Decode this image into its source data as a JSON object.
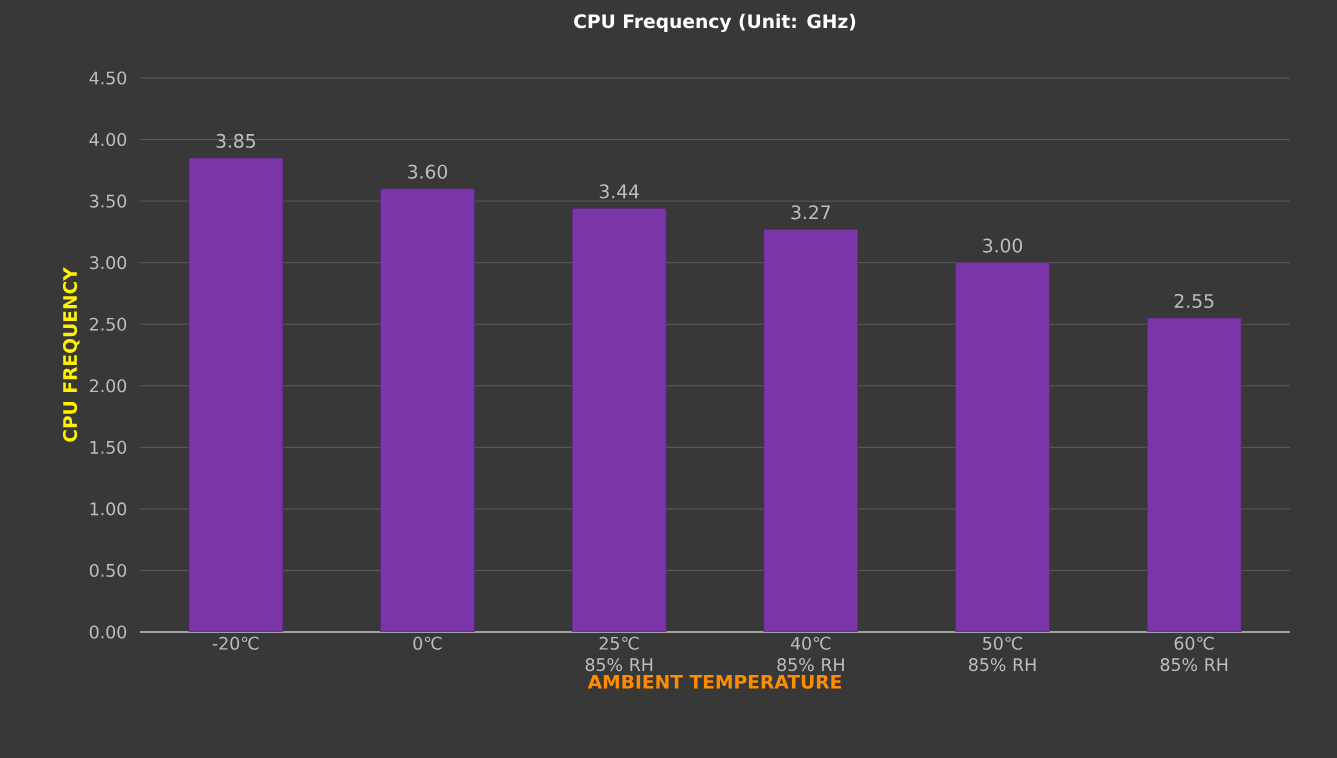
{
  "chart_data": {
    "type": "bar",
    "title": "CPU Frequency (Unit: GHz)",
    "xlabel": "AMBIENT TEMPERATURE",
    "ylabel": "CPU FREQUENCY",
    "categories": [
      "-20℃",
      "0℃",
      "25℃ 85% RH",
      "40℃ 85% RH",
      "50℃ 85% RH",
      "60℃ 85% RH"
    ],
    "values": [
      3.85,
      3.6,
      3.44,
      3.27,
      3.0,
      2.55
    ],
    "color": "#7a35a8",
    "ylim": [
      0,
      4.5
    ],
    "yticks": [
      {
        "value": 0,
        "label": "0.00"
      },
      {
        "value": 0.5,
        "label": "0.50"
      },
      {
        "value": 1,
        "label": "1.00"
      },
      {
        "value": 1.5,
        "label": "1.50"
      },
      {
        "value": 2,
        "label": "2.00"
      },
      {
        "value": 2.5,
        "label": "2.50"
      },
      {
        "value": 3,
        "label": "3.00"
      },
      {
        "value": 3.5,
        "label": "3.50"
      },
      {
        "value": 4,
        "label": "4.00"
      },
      {
        "value": 4.5,
        "label": "4.50"
      }
    ],
    "value_labels": [
      "3.85",
      "3.60",
      "3.44",
      "3.27",
      "3.00",
      "2.55"
    ],
    "grid": "y"
  }
}
